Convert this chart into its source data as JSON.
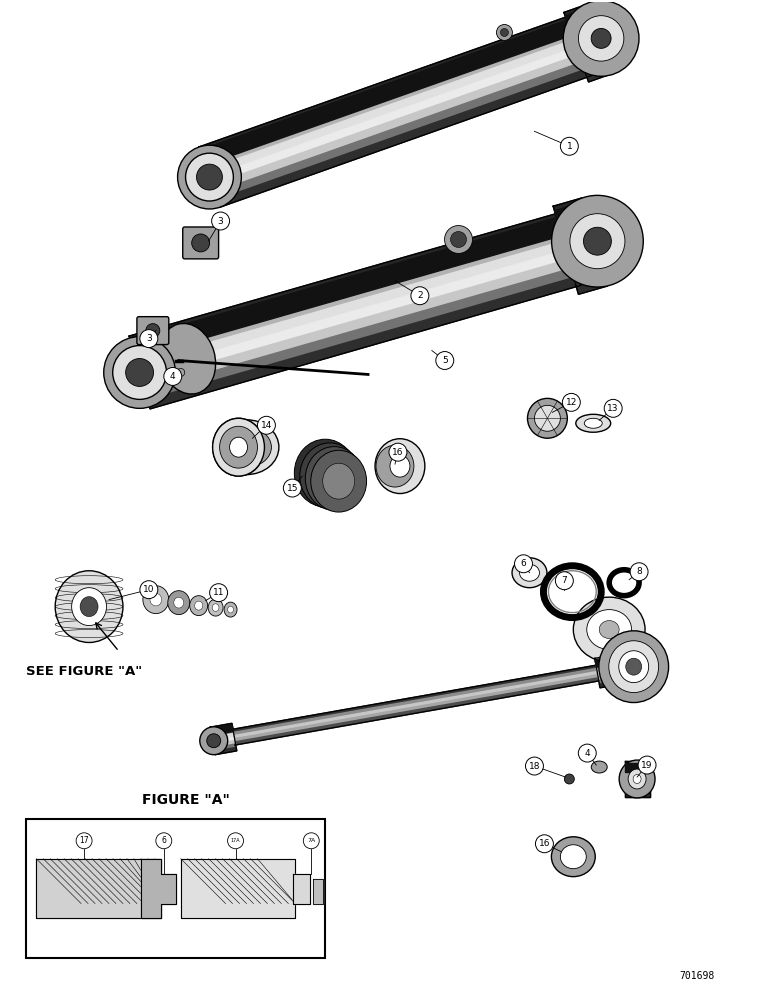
{
  "background_color": "#ffffff",
  "figure_size": [
    7.72,
    10.0
  ],
  "dpi": 100,
  "watermark": "701698",
  "figure_a_label": "FIGURE \"A\"",
  "see_figure_label": "SEE FIGURE \"A\"",
  "black": "#000000",
  "white": "#ffffff",
  "light_gray": "#e0e0e0",
  "mid_gray": "#a0a0a0",
  "dark_gray": "#404040",
  "very_dark": "#101010"
}
